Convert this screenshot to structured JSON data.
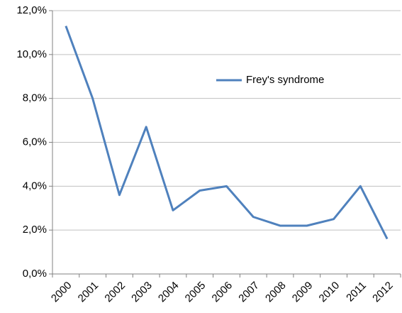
{
  "chart_data": {
    "type": "line",
    "categories": [
      "2000",
      "2001",
      "2002",
      "2003",
      "2004",
      "2005",
      "2006",
      "2007",
      "2008",
      "2009",
      "2010",
      "2011",
      "2012"
    ],
    "series": [
      {
        "name": "Frey's syndrome",
        "color": "#4f81bd",
        "values": [
          11.3,
          8.0,
          3.6,
          6.7,
          2.9,
          3.8,
          4.0,
          2.6,
          2.2,
          2.2,
          2.5,
          4.0,
          1.6
        ]
      }
    ],
    "ylim": [
      0,
      12
    ],
    "yticks": [
      {
        "value": 0,
        "label": "0,0%"
      },
      {
        "value": 2,
        "label": "2,0%"
      },
      {
        "value": 4,
        "label": "4,0%"
      },
      {
        "value": 6,
        "label": "6,0%"
      },
      {
        "value": 8,
        "label": "8,0%"
      },
      {
        "value": 10,
        "label": "10,0%"
      },
      {
        "value": 12,
        "label": "12,0%"
      }
    ],
    "grid": true,
    "legend": "upper right"
  }
}
